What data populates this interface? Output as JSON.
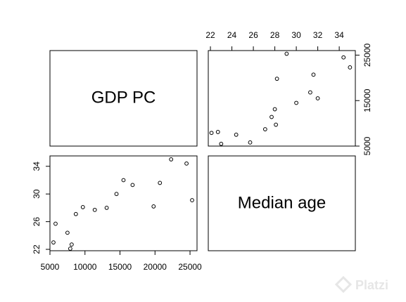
{
  "chart_data": {
    "type": "scatter",
    "layout": "pairs-matrix",
    "variables": [
      "GDP PC",
      "Median age"
    ],
    "gdp_pc": {
      "range": [
        5000,
        26000
      ],
      "ticks_bottom": [
        "5000",
        "10000",
        "15000",
        "20000",
        "25000"
      ],
      "ticks_right": [
        "5000",
        "15000",
        "25000"
      ]
    },
    "median_age": {
      "range": [
        21.8,
        35.5
      ],
      "ticks_top": [
        "22",
        "24",
        "26",
        "28",
        "30",
        "32",
        "34"
      ],
      "ticks_left": [
        "22",
        "26",
        "30",
        "34"
      ]
    },
    "points": [
      {
        "gdp_pc": 5500,
        "median_age": 23.0
      },
      {
        "gdp_pc": 5800,
        "median_age": 25.7
      },
      {
        "gdp_pc": 7500,
        "median_age": 24.4
      },
      {
        "gdp_pc": 7900,
        "median_age": 22.1
      },
      {
        "gdp_pc": 8100,
        "median_age": 22.7
      },
      {
        "gdp_pc": 8700,
        "median_age": 27.1
      },
      {
        "gdp_pc": 9700,
        "median_age": 28.1
      },
      {
        "gdp_pc": 11400,
        "median_age": 27.7
      },
      {
        "gdp_pc": 13100,
        "median_age": 28.0
      },
      {
        "gdp_pc": 14500,
        "median_age": 30.0
      },
      {
        "gdp_pc": 15500,
        "median_age": 32.0
      },
      {
        "gdp_pc": 16800,
        "median_age": 31.3
      },
      {
        "gdp_pc": 19800,
        "median_age": 28.2
      },
      {
        "gdp_pc": 20700,
        "median_age": 31.6
      },
      {
        "gdp_pc": 22300,
        "median_age": 35.0
      },
      {
        "gdp_pc": 24500,
        "median_age": 34.4
      },
      {
        "gdp_pc": 25300,
        "median_age": 29.1
      }
    ]
  },
  "watermark": {
    "text": "Platzi",
    "color": "#e6e6e6"
  }
}
